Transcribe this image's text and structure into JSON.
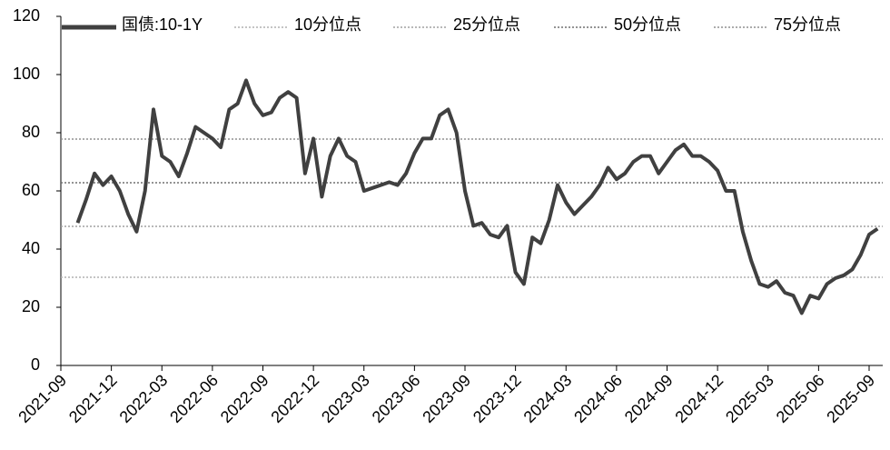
{
  "chart_data": {
    "type": "line",
    "categories": [
      "2021-09",
      null,
      null,
      null,
      null,
      null,
      "2021-12",
      null,
      null,
      null,
      null,
      null,
      "2022-03",
      null,
      null,
      null,
      null,
      null,
      "2022-06",
      null,
      null,
      null,
      null,
      null,
      "2022-09",
      null,
      null,
      null,
      null,
      null,
      "2022-12",
      null,
      null,
      null,
      null,
      null,
      "2023-03",
      null,
      null,
      null,
      null,
      null,
      "2023-06",
      null,
      null,
      null,
      null,
      null,
      "2023-09",
      null,
      null,
      null,
      null,
      null,
      "2023-12",
      null,
      null,
      null,
      null,
      null,
      "2024-03",
      null,
      null,
      null,
      null,
      null,
      "2024-06",
      null,
      null,
      null,
      null,
      null,
      "2024-09",
      null,
      null,
      null,
      null,
      null,
      "2024-12",
      null,
      null,
      null,
      null,
      null,
      "2025-03",
      null,
      null,
      null,
      null,
      null,
      "2025-06",
      null,
      null,
      null,
      null,
      null,
      "2025-09",
      null
    ],
    "series": [
      {
        "name": "国债:10-1Y",
        "color": "#404040",
        "values": [
          null,
          null,
          49,
          57,
          66,
          62,
          65,
          60,
          52,
          46,
          60,
          88,
          72,
          70,
          65,
          73,
          82,
          80,
          78,
          75,
          88,
          90,
          98,
          90,
          86,
          87,
          92,
          94,
          92,
          66,
          78,
          58,
          72,
          78,
          72,
          70,
          60,
          61,
          62,
          63,
          62,
          66,
          73,
          78,
          78,
          86,
          88,
          80,
          60,
          48,
          49,
          45,
          44,
          48,
          32,
          28,
          44,
          42,
          50,
          62,
          56,
          52,
          55,
          58,
          62,
          68,
          64,
          66,
          70,
          72,
          72,
          66,
          70,
          74,
          76,
          72,
          72,
          70,
          67,
          60,
          60,
          46,
          36,
          28,
          27,
          29,
          25,
          24,
          18,
          24,
          23,
          28,
          30,
          31,
          33,
          38,
          45,
          47
        ]
      }
    ],
    "reference_lines": [
      {
        "name": "10分位点",
        "value": 30.3,
        "color": "#b0b0b0"
      },
      {
        "name": "25分位点",
        "value": 47.8,
        "color": "#a0a0a0"
      },
      {
        "name": "50分位点",
        "value": 62.8,
        "color": "#707070"
      },
      {
        "name": "75分位点",
        "value": 77.8,
        "color": "#909090"
      }
    ],
    "ylim": [
      0,
      120
    ],
    "yticks": [
      0,
      20,
      40,
      60,
      80,
      100,
      120
    ]
  }
}
